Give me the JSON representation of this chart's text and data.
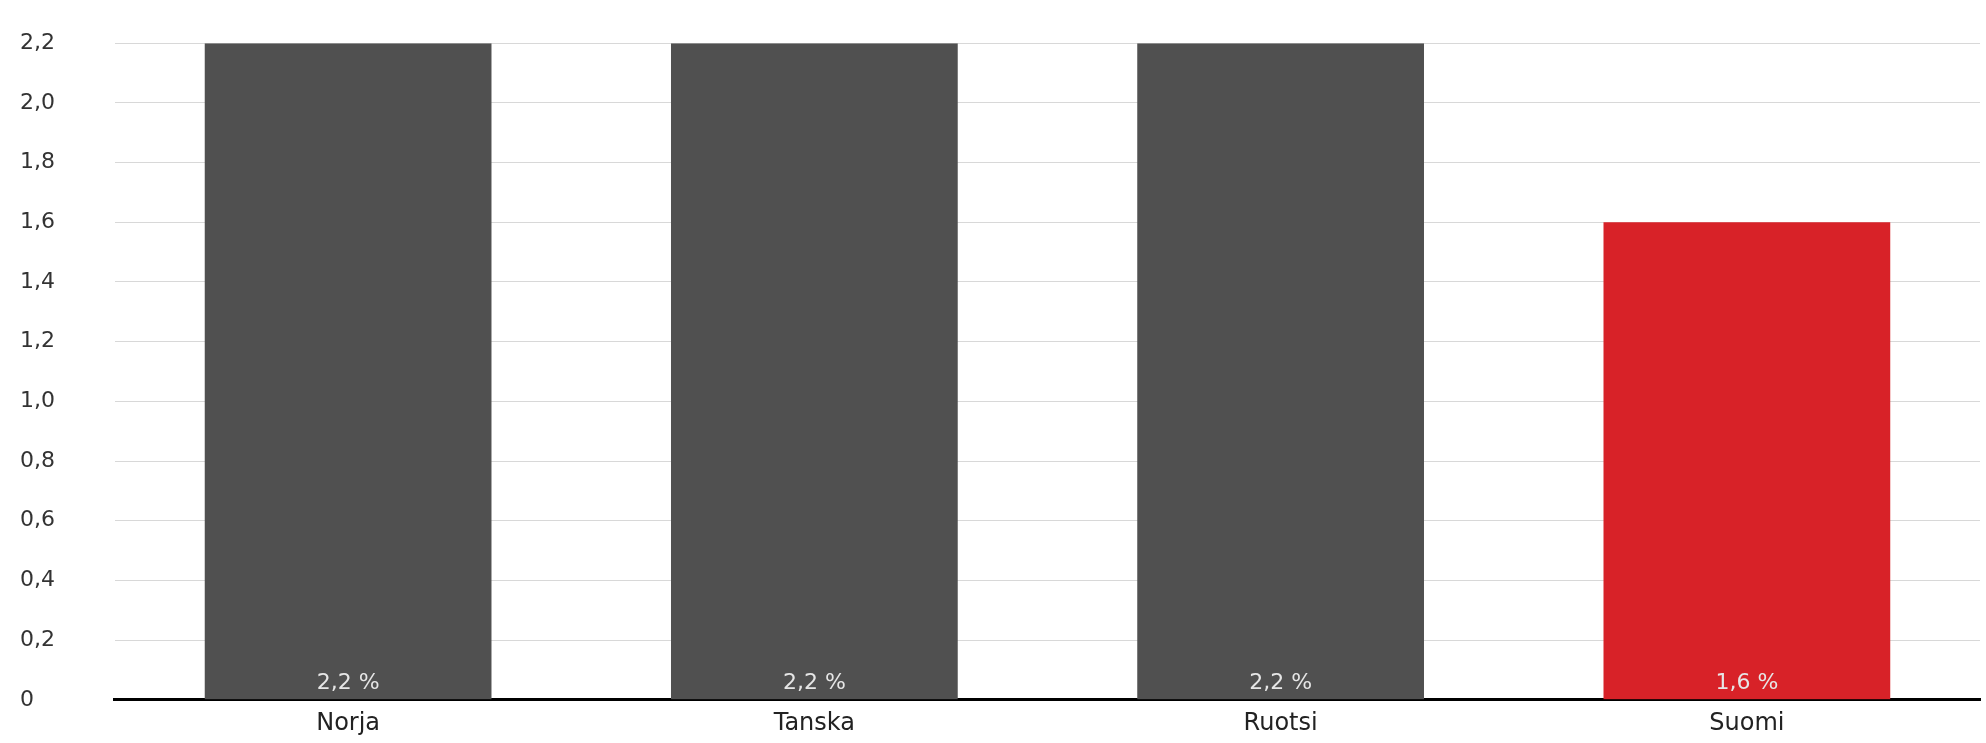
{
  "chart_data": {
    "type": "bar",
    "categories": [
      "Norja",
      "Tanska",
      "Ruotsi",
      "Suomi"
    ],
    "values": [
      2.2,
      2.2,
      2.2,
      1.6
    ],
    "colors": [
      "#505050",
      "#505050",
      "#505050",
      "#d82228"
    ],
    "value_labels": [
      "2,2 %",
      "2,2 %",
      "2,2 %",
      "1,6 %"
    ],
    "ylim": [
      0,
      2.2
    ],
    "yticks": [
      0,
      {
        "value": 0.2,
        "label": "0,2"
      },
      {
        "value": 0.4,
        "label": "0,4"
      },
      {
        "value": 0.6,
        "label": "0,6"
      },
      {
        "value": 0.8,
        "label": "0,8"
      },
      {
        "value": 1.0,
        "label": "1,0"
      },
      {
        "value": 1.2,
        "label": "1,2"
      },
      {
        "value": 1.4,
        "label": "1,4"
      },
      {
        "value": 1.6,
        "label": "1,6"
      },
      {
        "value": 1.8,
        "label": "1,8"
      },
      {
        "value": 2.0,
        "label": "2,0"
      },
      {
        "value": 2.2,
        "label": "2,2"
      }
    ],
    "grid": "y"
  }
}
